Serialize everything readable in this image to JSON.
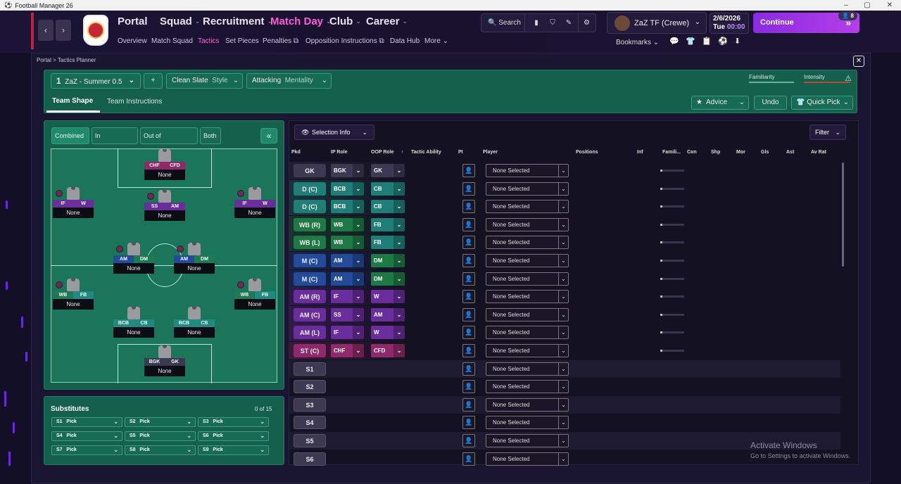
{
  "window": {
    "title": "Football Manager 26"
  },
  "nav": {
    "main": [
      "Portal",
      "Squad",
      "Recruitment",
      "Match Day",
      "Club",
      "Career"
    ],
    "sub": [
      "Overview",
      "Match Squad",
      "Tactics",
      "Set Pieces",
      "Penalties",
      "Opposition Instructions",
      "Data Hub",
      "More"
    ],
    "search": "Search",
    "manager": "ZaZ TF (Crewe)",
    "date": "2/6/2026",
    "day": "Tue",
    "time": "00:00",
    "continue": "Continue",
    "badge": "8",
    "bookmarks": "Bookmarks"
  },
  "breadcrumb": {
    "root": "Portal",
    "current": "Tactics Planner"
  },
  "tactic": {
    "slot": "1",
    "name": "ZaZ - Summer 0.5",
    "style": "Clean Slate",
    "style_label": "Style",
    "mentality": "Attacking",
    "mentality_label": "Mentality",
    "familiarity": "Familiarity",
    "intensity": "Intensity",
    "tabs": [
      "Team Shape",
      "Team Instructions"
    ],
    "advice": "Advice",
    "undo": "Undo",
    "quick_pick": "Quick Pick"
  },
  "pitch": {
    "tabs": [
      "Combined",
      "In Possession",
      "Out of Possession",
      "Both"
    ],
    "players": [
      {
        "r1": "CHF",
        "r2": "CFD",
        "name": "None",
        "c1": "#8e2a6a",
        "c2": "#8e2a6a"
      },
      {
        "r1": "IF",
        "r2": "W",
        "name": "None",
        "c1": "#6a2d9c",
        "c2": "#6a2d9c"
      },
      {
        "r1": "SS",
        "r2": "AM",
        "name": "None",
        "c1": "#6a2d9c",
        "c2": "#6a2d9c"
      },
      {
        "r1": "IF",
        "r2": "W",
        "name": "None",
        "c1": "#6a2d9c",
        "c2": "#6a2d9c"
      },
      {
        "r1": "AM",
        "r2": "DM",
        "name": "None",
        "c1": "#234b9a",
        "c2": "#1e7a52"
      },
      {
        "r1": "AM",
        "r2": "DM",
        "name": "None",
        "c1": "#234b9a",
        "c2": "#1e7a52"
      },
      {
        "r1": "WB",
        "r2": "FB",
        "name": "None",
        "c1": "#1e7a52",
        "c2": "#1f8a80"
      },
      {
        "r1": "WB",
        "r2": "FB",
        "name": "None",
        "c1": "#1e7a52",
        "c2": "#1f8a80"
      },
      {
        "r1": "BCB",
        "r2": "CB",
        "name": "None",
        "c1": "#1f8a80",
        "c2": "#1f8a80"
      },
      {
        "r1": "BCB",
        "r2": "CB",
        "name": "None",
        "c1": "#1f8a80",
        "c2": "#1f8a80"
      },
      {
        "r1": "BGK",
        "r2": "GK",
        "name": "None",
        "c1": "#3d3952",
        "c2": "#3d3952"
      }
    ]
  },
  "subs": {
    "title": "Substitutes",
    "count": "0 of 15",
    "items": [
      {
        "code": "S1",
        "label": "Pick"
      },
      {
        "code": "S2",
        "label": "Pick"
      },
      {
        "code": "S3",
        "label": "Pick"
      },
      {
        "code": "S4",
        "label": "Pick"
      },
      {
        "code": "S5",
        "label": "Pick"
      },
      {
        "code": "S6",
        "label": "Pick"
      },
      {
        "code": "S7",
        "label": "Pick"
      },
      {
        "code": "S8",
        "label": "Pick"
      },
      {
        "code": "S9",
        "label": "Pick"
      }
    ]
  },
  "table": {
    "selection_info": "Selection Info",
    "filter": "Filter",
    "headers": [
      "Pkd",
      "IP Role",
      "OOP Role",
      "Tactic Ability",
      "PI",
      "Player",
      "Positions",
      "Inf",
      "Famili...",
      "Con",
      "Shp",
      "Mor",
      "Gls",
      "Ast",
      "Av Rat"
    ],
    "rows": [
      {
        "pkd": "GK",
        "ip": "BGK",
        "oop": "GK",
        "player": "None Selected",
        "ipc": "#3d3952",
        "oopc": "#3d3952",
        "pkdc": "#3d3952"
      },
      {
        "pkd": "D (C)",
        "ip": "BCB",
        "oop": "CB",
        "player": "None Selected",
        "ipc": "#1f7f78",
        "oopc": "#1f7f78",
        "pkdc": "#1f7f78"
      },
      {
        "pkd": "D (C)",
        "ip": "BCB",
        "oop": "CB",
        "player": "None Selected",
        "ipc": "#1f7f78",
        "oopc": "#1f7f78",
        "pkdc": "#1f7f78"
      },
      {
        "pkd": "WB (R)",
        "ip": "WB",
        "oop": "FB",
        "player": "None Selected",
        "ipc": "#1e7a45",
        "oopc": "#1f7f78",
        "pkdc": "#1e7a45"
      },
      {
        "pkd": "WB (L)",
        "ip": "WB",
        "oop": "FB",
        "player": "None Selected",
        "ipc": "#1e7a45",
        "oopc": "#1f7f78",
        "pkdc": "#1e7a45"
      },
      {
        "pkd": "M (C)",
        "ip": "AM",
        "oop": "DM",
        "player": "None Selected",
        "ipc": "#234b9a",
        "oopc": "#1e7a45",
        "pkdc": "#234b9a"
      },
      {
        "pkd": "M (C)",
        "ip": "AM",
        "oop": "DM",
        "player": "None Selected",
        "ipc": "#234b9a",
        "oopc": "#1e7a45",
        "pkdc": "#234b9a"
      },
      {
        "pkd": "AM (R)",
        "ip": "IF",
        "oop": "W",
        "player": "None Selected",
        "ipc": "#6a2d9c",
        "oopc": "#6a2d9c",
        "pkdc": "#6a2d9c"
      },
      {
        "pkd": "AM (C)",
        "ip": "SS",
        "oop": "AM",
        "player": "None Selected",
        "ipc": "#6a2d9c",
        "oopc": "#6a2d9c",
        "pkdc": "#6a2d9c"
      },
      {
        "pkd": "AM (L)",
        "ip": "IF",
        "oop": "W",
        "player": "None Selected",
        "ipc": "#6a2d9c",
        "oopc": "#6a2d9c",
        "pkdc": "#6a2d9c"
      },
      {
        "pkd": "ST (C)",
        "ip": "CHF",
        "oop": "CFD",
        "player": "None Selected",
        "ipc": "#8e2a6a",
        "oopc": "#8e2a6a",
        "pkdc": "#8e2a6a"
      },
      {
        "pkd": "S1",
        "player": "None Selected"
      },
      {
        "pkd": "S2",
        "player": "None Selected"
      },
      {
        "pkd": "S3",
        "player": "None Selected"
      },
      {
        "pkd": "S4",
        "player": "None Selected"
      },
      {
        "pkd": "S5",
        "player": "None Selected"
      },
      {
        "pkd": "S6",
        "player": "None Selected"
      }
    ]
  },
  "watermark": {
    "title": "Activate Windows",
    "subtitle": "Go to Settings to activate Windows."
  }
}
